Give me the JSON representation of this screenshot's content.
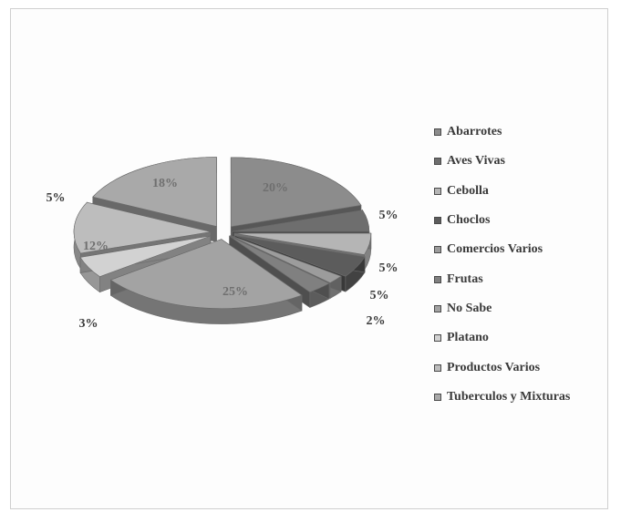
{
  "chart_data": {
    "type": "pie",
    "style": "3d-exploded",
    "legend_position": "right",
    "slices": [
      {
        "label": "Abarrotes",
        "value": 20,
        "display": "20%",
        "color": "#8c8c8c",
        "label_inside": true
      },
      {
        "label": "Aves Vivas",
        "value": 5,
        "display": "5%",
        "color": "#6e6e6e",
        "label_inside": false
      },
      {
        "label": "Cebolla",
        "value": 5,
        "display": "5%",
        "color": "#b5b5b5",
        "label_inside": false
      },
      {
        "label": "Choclos",
        "value": 5,
        "display": "5%",
        "color": "#5c5c5c",
        "label_inside": false
      },
      {
        "label": "Comercios Varios",
        "value": 2,
        "display": "2%",
        "color": "#9c9c9c",
        "label_inside": false
      },
      {
        "label": "Frutas",
        "value": 3,
        "display": "3%",
        "color": "#808080",
        "label_inside": false
      },
      {
        "label": "No Sabe",
        "value": 25,
        "display": "25%",
        "color": "#a3a3a3",
        "label_inside": true
      },
      {
        "label": "Platano",
        "value": 5,
        "display": "5%",
        "color": "#d2d2d2",
        "label_inside": false
      },
      {
        "label": "Productos Varios",
        "value": 12,
        "display": "12%",
        "color": "#bdbdbd",
        "label_inside": true
      },
      {
        "label": "Tuberculos y Mixturas",
        "value": 18,
        "display": "18%",
        "color": "#a9a9a9",
        "label_inside": true
      }
    ]
  }
}
